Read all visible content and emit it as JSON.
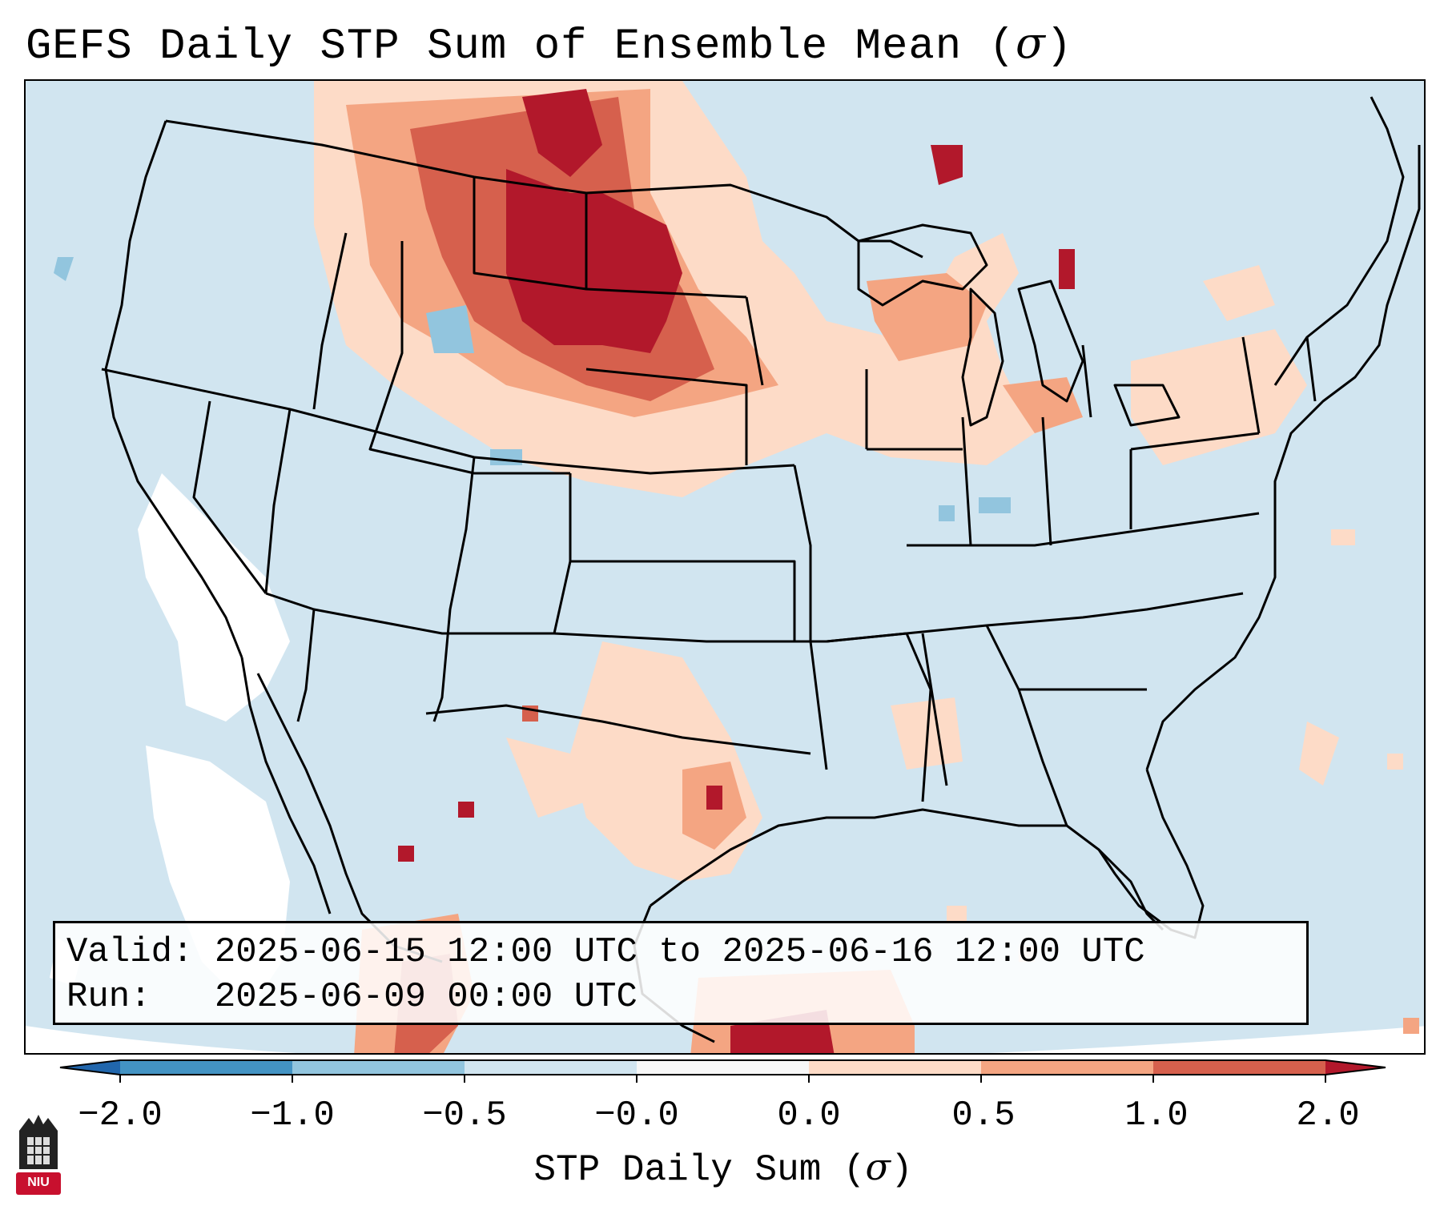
{
  "title": {
    "prefix": "GEFS Daily STP Sum of Ensemble Mean (",
    "symbol": "σ",
    "suffix": ")"
  },
  "info": {
    "valid_label": "Valid:",
    "valid_value": "2025-06-15 12:00 UTC to 2025-06-16 12:00 UTC",
    "run_label": "Run:",
    "run_value": "2025-06-09 00:00 UTC"
  },
  "colorbar": {
    "label_prefix": "STP Daily Sum (",
    "label_symbol": "σ",
    "label_suffix": ")",
    "ticks": [
      "−2.0",
      "−1.0",
      "−0.5",
      "−0.0",
      "0.0",
      "0.5",
      "1.0",
      "2.0"
    ],
    "colors": [
      "#2166ac",
      "#4393c3",
      "#92c5de",
      "#d1e5f0",
      "#f7f7f7",
      "#fddbc7",
      "#f4a582",
      "#d6604d",
      "#b2182b"
    ]
  },
  "logo": {
    "text": "NIU"
  },
  "colors": {
    "background": "#d1e5f0",
    "neutral": "#ffffff",
    "light_pos": "#fddbc7",
    "mid_pos": "#f4a582",
    "high_pos": "#d6604d",
    "max_pos": "#b2182b",
    "light_neg": "#92c5de",
    "logo_red": "#c8102e"
  }
}
